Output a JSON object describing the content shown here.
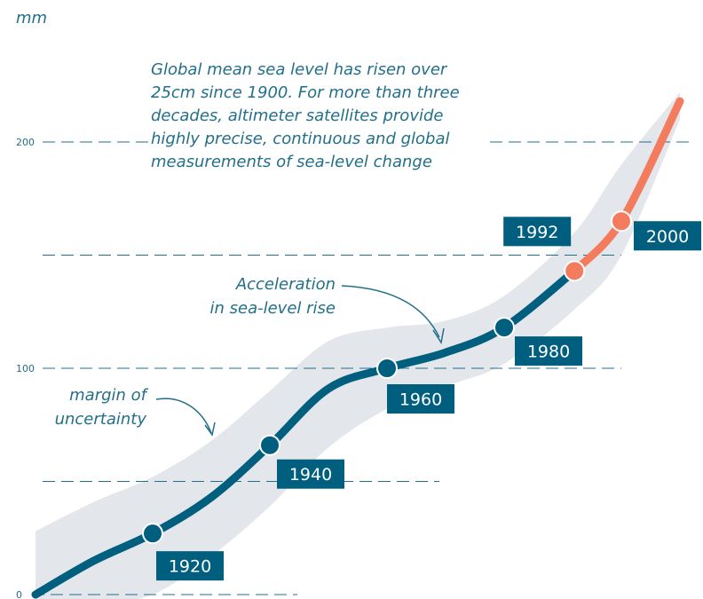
{
  "unit_label": "mm",
  "intro_lines": [
    "Global mean sea level has risen over",
    "25cm since 1900. For more than three",
    "decades, altimeter satellites provide",
    "highly precise, continuous and global",
    "measurements of sea-level change"
  ],
  "annotations": {
    "acceleration": [
      "Acceleration",
      "in sea-level rise"
    ],
    "uncertainty": [
      "margin of",
      "uncertainty"
    ]
  },
  "colors": {
    "tide_gauge": "#005f7f",
    "satellite": "#f47c5e",
    "band": "#e3e6ea",
    "text": "#236f8a"
  },
  "chart_data": {
    "type": "line",
    "ylabel": "mm",
    "y_ticks": [
      0,
      100,
      200
    ],
    "y_tick_labels": [
      "0",
      "100",
      "200"
    ],
    "grid": "dashed",
    "series": [
      {
        "x": [
          1900,
          1910,
          1920,
          1930,
          1940,
          1950,
          1960,
          1970,
          1980,
          1992
        ],
        "y": [
          0,
          15,
          27,
          43,
          66,
          91,
          100,
          107,
          118,
          143
        ]
      },
      {
        "x": [
          1992,
          2000,
          2010
        ],
        "y": [
          143,
          165,
          218
        ]
      }
    ],
    "uncertainty_band": {
      "x": [
        1900,
        1910,
        1920,
        1930,
        1940,
        1950,
        1960,
        1970,
        1980,
        1992,
        2000,
        2010
      ],
      "upper": [
        28,
        41,
        52,
        68,
        90,
        112,
        118,
        121,
        132,
        160,
        190,
        222
      ],
      "lower": [
        -2,
        -4,
        0,
        17,
        39,
        65,
        82,
        92,
        102,
        126,
        150,
        210
      ]
    },
    "labeled_points": [
      {
        "label": "1920",
        "x": 1920,
        "y": 27
      },
      {
        "label": "1940",
        "x": 1940,
        "y": 66
      },
      {
        "label": "1960",
        "x": 1960,
        "y": 100
      },
      {
        "label": "1980",
        "x": 1980,
        "y": 118
      },
      {
        "label": "1992",
        "x": 1992,
        "y": 143
      },
      {
        "label": "2000",
        "x": 2000,
        "y": 165
      }
    ]
  }
}
